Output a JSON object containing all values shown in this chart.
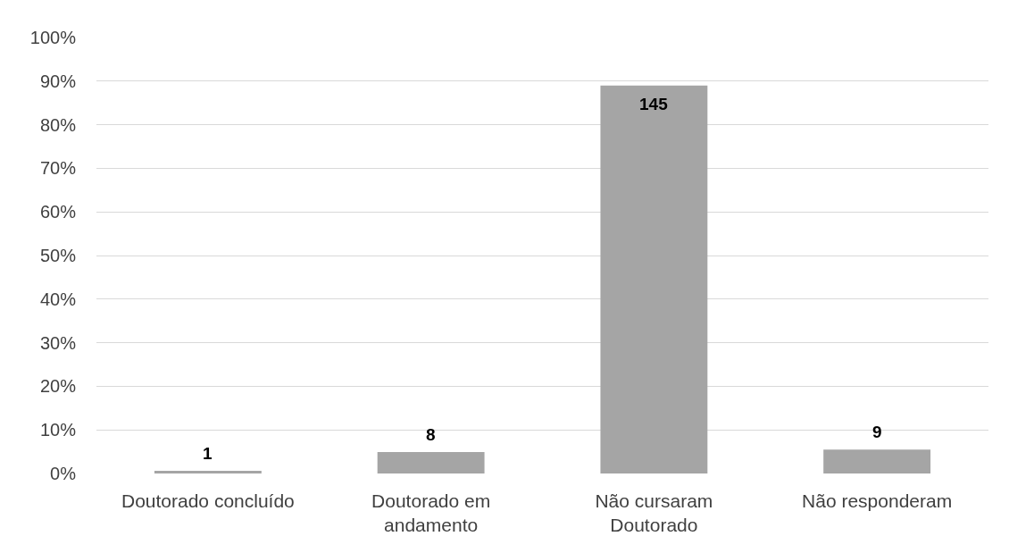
{
  "chart_data": {
    "type": "bar",
    "categories": [
      "Doutorado concluído",
      "Doutorado em andamento",
      "Não cursaram Doutorado",
      "Não responderam"
    ],
    "values": [
      0.6,
      4.9,
      89,
      5.5
    ],
    "color": "#a5a5a5",
    "annotations": [
      {
        "text": "1",
        "x": "Doutorado concluído",
        "y": 0.6
      },
      {
        "text": "8",
        "x": "Doutorado em andamento",
        "y": 4.9
      },
      {
        "text": "145",
        "x": "Não cursaram Doutorado",
        "y": 89
      },
      {
        "text": "9",
        "x": "Não responderam",
        "y": 5.5
      }
    ],
    "ylim": [
      0,
      100
    ],
    "yticks": [
      {
        "value": 0,
        "label": "0%"
      },
      {
        "value": 10,
        "label": "10%"
      },
      {
        "value": 20,
        "label": "20%"
      },
      {
        "value": 30,
        "label": "30%"
      },
      {
        "value": 40,
        "label": "40%"
      },
      {
        "value": 50,
        "label": "50%"
      },
      {
        "value": 60,
        "label": "60%"
      },
      {
        "value": 70,
        "label": "70%"
      },
      {
        "value": 80,
        "label": "80%"
      },
      {
        "value": 90,
        "label": "90%"
      },
      {
        "value": 100,
        "label": "100%"
      }
    ],
    "grid": "y"
  }
}
